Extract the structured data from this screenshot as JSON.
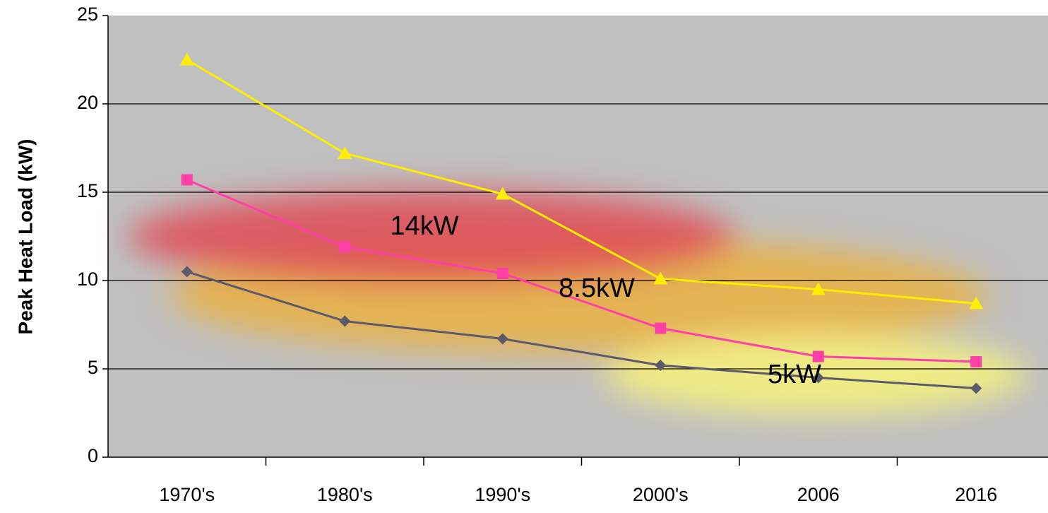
{
  "chart_data": {
    "type": "line",
    "y_label": "Peak Heat Load (kW)",
    "categories": [
      "1970's",
      "1980's",
      "1990's",
      "2000's",
      "2006",
      "2016"
    ],
    "series": [
      {
        "color": "#ffee00",
        "marker": "triangle",
        "values": [
          22.5,
          17.2,
          14.9,
          10.1,
          9.5,
          8.7
        ]
      },
      {
        "color": "#ff3fa8",
        "marker": "square",
        "values": [
          15.7,
          11.9,
          10.4,
          7.3,
          5.7,
          5.4
        ]
      },
      {
        "color": "#5a5a6a",
        "marker": "diamond",
        "values": [
          10.5,
          7.7,
          6.7,
          5.2,
          4.5,
          3.9
        ]
      }
    ],
    "annotations": [
      "14kW",
      "8.5kW",
      "5kW"
    ],
    "ylim": [
      0,
      25
    ],
    "yticks": [
      0,
      5,
      10,
      15,
      20,
      25
    ],
    "grid": true
  }
}
